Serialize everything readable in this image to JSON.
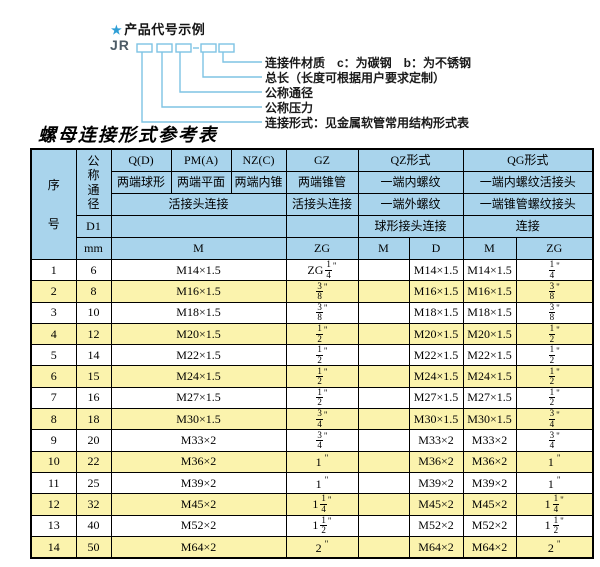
{
  "title": "螺母连接形式参考表",
  "diagram": {
    "star": "★",
    "heading": "产品代号示例",
    "code": "JR",
    "labels": [
      "连接件材质　c：为碳钢　b：为不锈钢",
      "总长（长度可根据用户要求定制）",
      "公称通径",
      "公称压力",
      "连接形式：见金属软管常用结构形式表"
    ]
  },
  "colors": {
    "header_bg": "#a9d4ec",
    "row_alt_bg": "#fbf3ad",
    "diagram_line": "#7ec3e4",
    "star": "#2f9fd6",
    "border": "#000000"
  },
  "table": {
    "header": {
      "seq": "序号",
      "bore": "公称通径",
      "d1": "D1",
      "mm": "mm",
      "q": "Q(D)",
      "pm": "PM(A)",
      "nz": "NZ(C)",
      "gz": "GZ",
      "qz": "QZ形式",
      "qg": "QG形式",
      "q_desc": "两端球形",
      "pm_desc": "两端平面",
      "nz_desc": "两端内锥",
      "gz_desc": "两端锥管",
      "qz_desc1": "一端内螺纹",
      "qg_desc1": "一端内螺纹活接头",
      "union_conn": "活接头连接",
      "gz_conn": "活接头连接",
      "qz_desc2": "一端外螺纹",
      "qg_desc2": "一端锥管螺纹接头",
      "qz_conn": "球形接头连接",
      "qg_conn": "连接",
      "m": "M",
      "zg": "ZG",
      "qz_m": "M",
      "qz_d": "D",
      "qg_m": "M",
      "qg_zg": "ZG"
    },
    "rows": [
      [
        "1",
        "6",
        "M14×1.5",
        "ZG 1/4",
        "",
        "M14×1.5",
        "M14×1.5",
        "1/4"
      ],
      [
        "2",
        "8",
        "M16×1.5",
        "3/8",
        "",
        "M16×1.5",
        "M16×1.5",
        "3/8"
      ],
      [
        "3",
        "10",
        "M18×1.5",
        "3/8",
        "",
        "M18×1.5",
        "M18×1.5",
        "3/8"
      ],
      [
        "4",
        "12",
        "M20×1.5",
        "1/2",
        "",
        "M20×1.5",
        "M20×1.5",
        "1/2"
      ],
      [
        "5",
        "14",
        "M22×1.5",
        "1/2",
        "",
        "M22×1.5",
        "M22×1.5",
        "1/2"
      ],
      [
        "6",
        "15",
        "M24×1.5",
        "1/2",
        "",
        "M24×1.5",
        "M24×1.5",
        "1/2"
      ],
      [
        "7",
        "16",
        "M27×1.5",
        "1/2",
        "",
        "M27×1.5",
        "M27×1.5",
        "1/2"
      ],
      [
        "8",
        "18",
        "M30×1.5",
        "3/4",
        "",
        "M30×1.5",
        "M30×1.5",
        "3/4"
      ],
      [
        "9",
        "20",
        "M33×2",
        "3/4",
        "",
        "M33×2",
        "M33×2",
        "3/4"
      ],
      [
        "10",
        "22",
        "M36×2",
        "1",
        "",
        "M36×2",
        "M36×2",
        "1"
      ],
      [
        "11",
        "25",
        "M39×2",
        "1",
        "",
        "M39×2",
        "M39×2",
        "1"
      ],
      [
        "12",
        "32",
        "M45×2",
        "1 1/4",
        "",
        "M45×2",
        "M45×2",
        "1 1/4"
      ],
      [
        "13",
        "40",
        "M52×2",
        "1 1/2",
        "",
        "M52×2",
        "M52×2",
        "1 1/2"
      ],
      [
        "14",
        "50",
        "M64×2",
        "2",
        "",
        "M64×2",
        "M64×2",
        "2"
      ]
    ]
  }
}
